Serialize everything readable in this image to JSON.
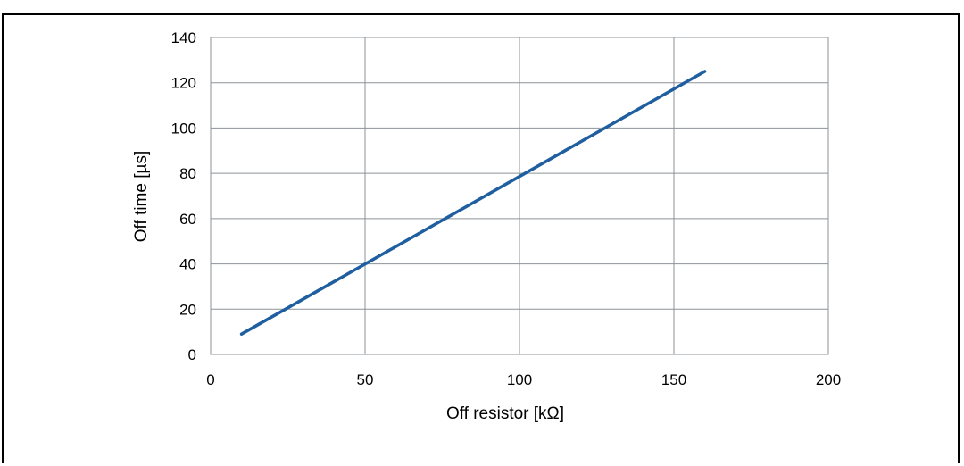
{
  "chart_data": {
    "type": "line",
    "title": "",
    "xlabel": "Off resistor [kΩ]",
    "ylabel": "Off time [µs]",
    "xlim": [
      0,
      200
    ],
    "ylim": [
      0,
      140
    ],
    "xticks": [
      0,
      50,
      100,
      150,
      200
    ],
    "yticks": [
      0,
      20,
      40,
      60,
      80,
      100,
      120,
      140
    ],
    "grid": true,
    "series": [
      {
        "color": "#1f5fa0",
        "x": [
          10,
          160
        ],
        "y": [
          9,
          125
        ]
      }
    ]
  }
}
